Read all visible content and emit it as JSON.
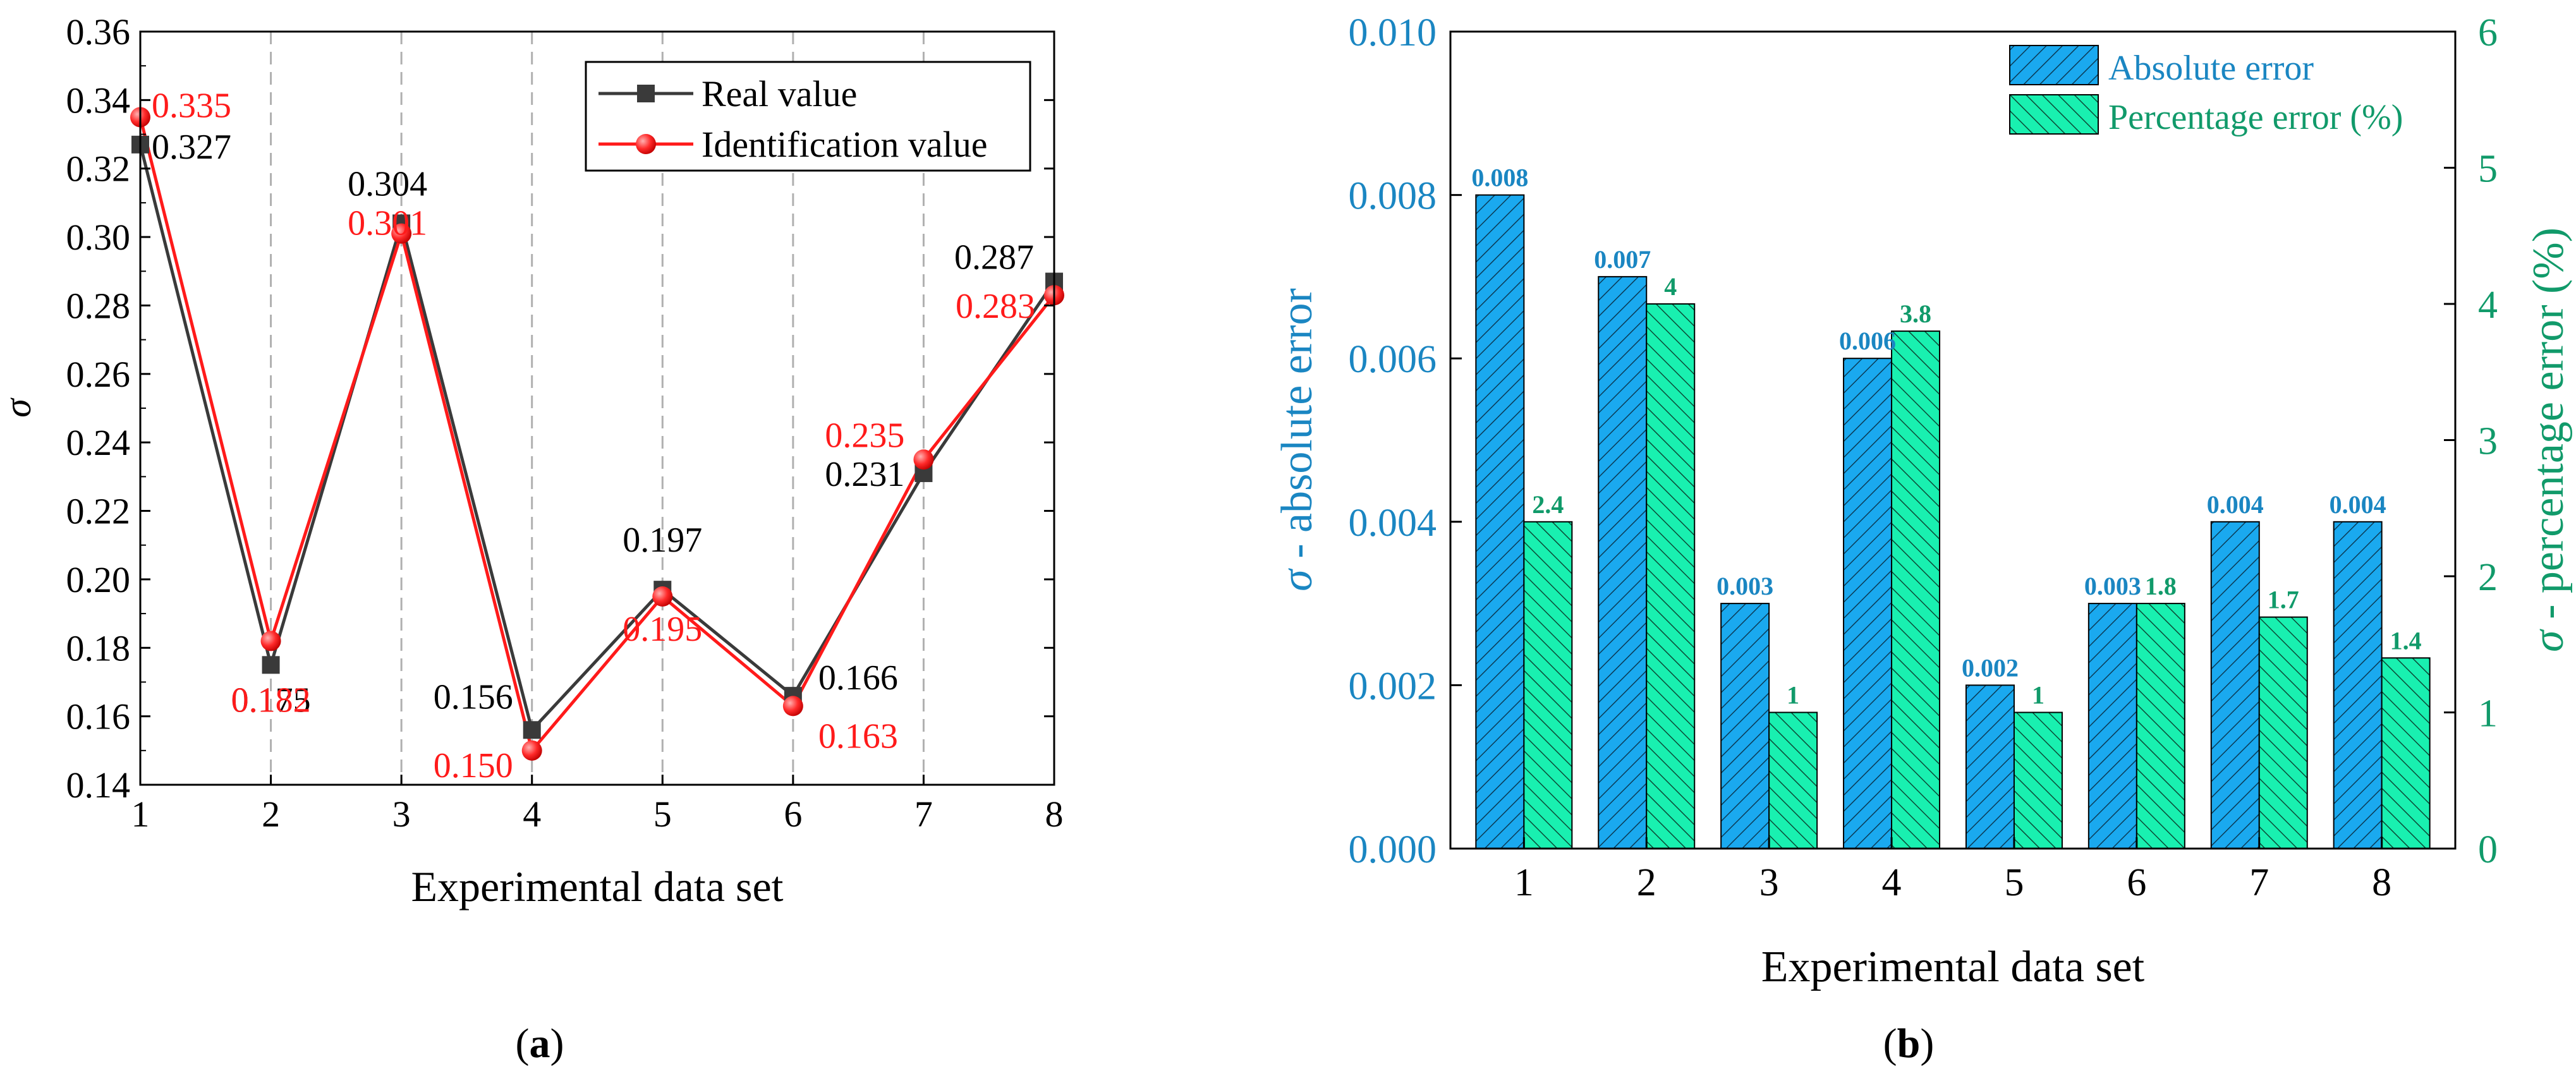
{
  "colors": {
    "real": "#3a3a3a",
    "identification": "#ff1a1a",
    "abs_fill": "#1aa9ef",
    "abs_text": "#1a86c2",
    "pct_fill": "#19f0b0",
    "pct_text": "#119a6a",
    "axis": "#000000",
    "grid": "#b0b0b0"
  },
  "chart_data": [
    {
      "type": "line",
      "panel_label": "a",
      "title": "",
      "xlabel": "Experimental data set",
      "ylabel": "σ",
      "x": [
        1,
        2,
        3,
        4,
        5,
        6,
        7,
        8
      ],
      "xticks": [
        "1",
        "2",
        "3",
        "4",
        "5",
        "6",
        "7",
        "8"
      ],
      "xlim": [
        1,
        8
      ],
      "ylim": [
        0.14,
        0.36
      ],
      "yticks": [
        "0.14",
        "0.16",
        "0.18",
        "0.20",
        "0.22",
        "0.24",
        "0.26",
        "0.28",
        "0.30",
        "0.32",
        "0.34",
        "0.36"
      ],
      "grid": "vertical dashed",
      "legend": "top-right",
      "series": [
        {
          "name": "Real value",
          "marker": "square",
          "values": [
            0.327,
            0.175,
            0.304,
            0.156,
            0.197,
            0.166,
            0.231,
            0.287
          ],
          "labels": [
            "0.327",
            "0.175",
            "0.304",
            "0.156",
            "0.197",
            "0.166",
            "0.231",
            "0.287"
          ]
        },
        {
          "name": "Identification value",
          "marker": "circle",
          "values": [
            0.335,
            0.182,
            0.301,
            0.15,
            0.195,
            0.163,
            0.235,
            0.283
          ],
          "labels": [
            "0.335",
            "0.182",
            "0.301",
            "0.150",
            "0.195",
            "0.163",
            "0.235",
            "0.283"
          ]
        }
      ]
    },
    {
      "type": "bar",
      "panel_label": "b",
      "title": "",
      "xlabel": "Experimental data set",
      "ylabel_left_symbol": "σ",
      "ylabel_left": " - absolute error",
      "ylabel_right_symbol": "σ",
      "ylabel_right": " - percentage error (%)",
      "categories": [
        "1",
        "2",
        "3",
        "4",
        "5",
        "6",
        "7",
        "8"
      ],
      "ylim_left": [
        0,
        0.01
      ],
      "yticks_left": [
        "0.000",
        "0.002",
        "0.004",
        "0.006",
        "0.008",
        "0.010"
      ],
      "ylim_right": [
        0,
        6
      ],
      "yticks_right": [
        "0",
        "1",
        "2",
        "3",
        "4",
        "5",
        "6"
      ],
      "legend": "top-right",
      "series": [
        {
          "name": "Absolute error",
          "axis": "left",
          "values": [
            0.008,
            0.007,
            0.003,
            0.006,
            0.002,
            0.003,
            0.004,
            0.004
          ],
          "labels": [
            "0.008",
            "0.007",
            "0.003",
            "0.006",
            "0.002",
            "0.003",
            "0.004",
            "0.004"
          ]
        },
        {
          "name": "Percentage error (%)",
          "axis": "right",
          "values": [
            2.4,
            4,
            1,
            3.8,
            1,
            1.8,
            1.7,
            1.4
          ],
          "labels": [
            "2.4",
            "4",
            "1",
            "3.8",
            "1",
            "1.8",
            "1.7",
            "1.4"
          ]
        }
      ]
    }
  ]
}
